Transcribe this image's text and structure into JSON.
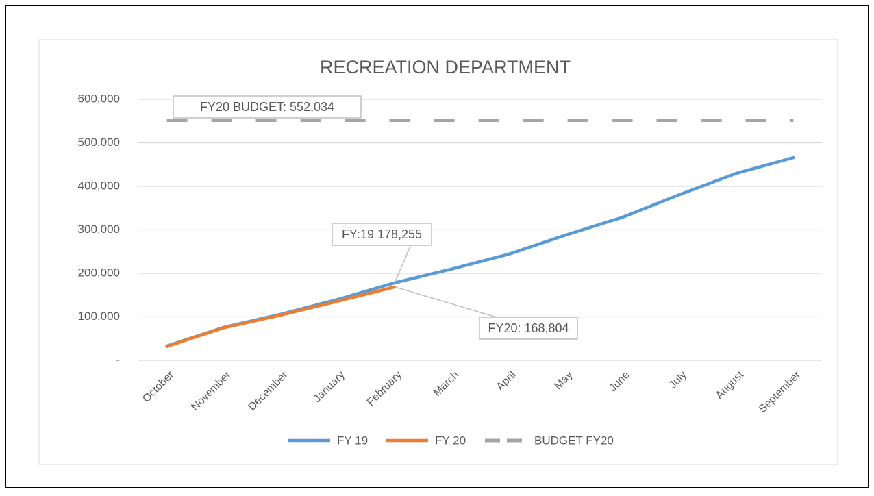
{
  "chart_data": {
    "type": "line",
    "title": "RECREATION DEPARTMENT",
    "categories": [
      "October",
      "November",
      "December",
      "January",
      "February",
      "March",
      "April",
      "May",
      "June",
      "July",
      "August",
      "September"
    ],
    "series": [
      {
        "name": "FY 19",
        "color": "#5b9bd5",
        "values": [
          33000,
          76000,
          106000,
          140000,
          178255,
          210000,
          244000,
          288000,
          329000,
          381000,
          430000,
          466000
        ]
      },
      {
        "name": "FY 20",
        "color": "#ed7d31",
        "values": [
          32000,
          75000,
          104000,
          136000,
          168804,
          null,
          null,
          null,
          null,
          null,
          null,
          null
        ]
      },
      {
        "name": "BUDGET FY20",
        "color": "#a5a5a5",
        "dashed": true,
        "values": [
          552034,
          552034,
          552034,
          552034,
          552034,
          552034,
          552034,
          552034,
          552034,
          552034,
          552034,
          552034
        ]
      }
    ],
    "annotations": [
      "FY20 BUDGET: 552,034",
      "FY:19 178,255",
      "FY20: 168,804"
    ],
    "ylim": [
      0,
      600000
    ],
    "yticks": [
      {
        "value": 0,
        "label": "-"
      },
      {
        "value": 100000,
        "label": "100,000"
      },
      {
        "value": 200000,
        "label": "200,000"
      },
      {
        "value": 300000,
        "label": "300,000"
      },
      {
        "value": 400000,
        "label": "400,000"
      },
      {
        "value": 500000,
        "label": "500,000"
      },
      {
        "value": 600000,
        "label": "600,000"
      }
    ],
    "grid": true,
    "legend": "bottom"
  }
}
